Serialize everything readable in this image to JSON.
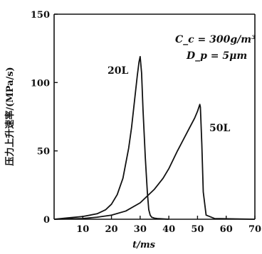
{
  "chart_data": {
    "type": "line",
    "xlabel": "t/ms",
    "ylabel": "压力上升速率/(MPa/s)",
    "xlim": [
      0,
      70
    ],
    "ylim": [
      0,
      150
    ],
    "x_ticks": [
      "10",
      "20",
      "30",
      "40",
      "50",
      "60",
      "70"
    ],
    "y_ticks": [
      "0",
      "50",
      "100",
      "150"
    ],
    "grid": false,
    "annotations": [
      "C_c = 300g/m³",
      "D_p = 5μm"
    ],
    "series": [
      {
        "name": "20L",
        "x": [
          0,
          5,
          10,
          15,
          18,
          20,
          22,
          24,
          26,
          27,
          28,
          29,
          29.6,
          30,
          30.5,
          31,
          31.8,
          32.5,
          33,
          33.5,
          34,
          35,
          36,
          40
        ],
        "y": [
          0,
          1,
          2,
          4,
          7,
          11,
          18,
          30,
          52,
          67,
          86,
          105,
          115,
          119,
          107,
          80,
          45,
          20,
          7,
          3,
          1.5,
          0.8,
          0.5,
          0
        ]
      },
      {
        "name": "50L",
        "x": [
          0,
          10,
          15,
          20,
          25,
          30,
          35,
          38,
          40,
          43,
          45,
          47,
          49,
          50,
          50.8,
          51,
          51.5,
          52,
          53,
          56,
          70
        ],
        "y": [
          0,
          0.5,
          1.5,
          3,
          6,
          12,
          22,
          30,
          37,
          50,
          58,
          66,
          74,
          79,
          84,
          82,
          55,
          20,
          3,
          0.5,
          0
        ]
      }
    ]
  }
}
